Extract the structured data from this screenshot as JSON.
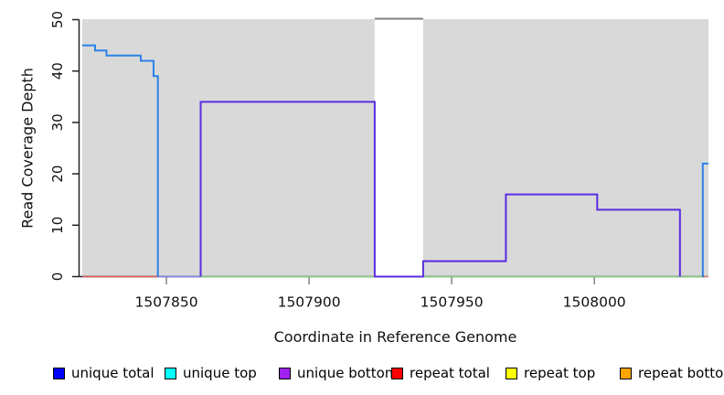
{
  "chart_data": {
    "type": "line",
    "title": "",
    "xlabel": "Coordinate in Reference Genome",
    "ylabel": "Read Coverage Depth",
    "xlim": [
      1507820.5,
      1508040
    ],
    "ylim": [
      0,
      50
    ],
    "x_ticks": [
      1507850,
      1507900,
      1507950,
      1508000
    ],
    "x_tick_labels": [
      "1507850",
      "1507900",
      "1507950",
      "1508000"
    ],
    "y_ticks": [
      0,
      10,
      20,
      30,
      40,
      50
    ],
    "y_tick_labels": [
      "0",
      "10",
      "20",
      "30",
      "40",
      "50"
    ],
    "plot_background": "#d9d9d9",
    "axis_color": "#222222",
    "x_tick_color": "#8a8a8a",
    "tick_label_color": "#111111",
    "grid": "off",
    "legend_position": "bottom",
    "gap_band": {
      "x0": 1507923,
      "x1": 1507940,
      "fill": "#ffffff",
      "top_line_value": 50,
      "top_line_color": "#7f7f7f"
    },
    "series": [
      {
        "name": "repeat-total-baseline-left",
        "color": "#dd5c5c",
        "width": 1.6,
        "points": [
          [
            1507820.5,
            0
          ],
          [
            1507847,
            0
          ]
        ]
      },
      {
        "name": "overlap-baseline-violet",
        "color": "#8585ea",
        "width": 1.6,
        "points": [
          [
            1507847,
            0
          ],
          [
            1507862,
            0
          ]
        ]
      },
      {
        "name": "overlap-baseline-green",
        "color": "#86cf86",
        "width": 1.6,
        "points": [
          [
            1507862,
            0
          ],
          [
            1508038,
            0
          ]
        ]
      },
      {
        "name": "repeat-total-baseline-right",
        "color": "#e58c8c",
        "width": 1.6,
        "points": [
          [
            1508038.5,
            0
          ],
          [
            1508040,
            0
          ]
        ]
      },
      {
        "name": "unique-bottom-coverage",
        "color": "#5a2cdf",
        "width": 2,
        "points": [
          [
            1507862,
            0
          ],
          [
            1507862,
            34
          ],
          [
            1507923,
            34
          ],
          [
            1507923,
            0
          ],
          [
            1507940,
            0
          ],
          [
            1507940,
            3
          ],
          [
            1507969,
            3
          ],
          [
            1507969,
            16
          ],
          [
            1508001,
            16
          ],
          [
            1508001,
            13
          ],
          [
            1508030,
            13
          ],
          [
            1508030,
            0
          ]
        ]
      },
      {
        "name": "unique-total-coverage-left",
        "color": "#2b82e8",
        "width": 2,
        "points": [
          [
            1507820.5,
            45
          ],
          [
            1507825,
            45
          ],
          [
            1507825,
            44
          ],
          [
            1507829,
            44
          ],
          [
            1507829,
            43
          ],
          [
            1507841,
            43
          ],
          [
            1507841,
            42
          ],
          [
            1507845.5,
            42
          ],
          [
            1507845.5,
            39
          ],
          [
            1507847,
            39
          ],
          [
            1507847,
            0
          ]
        ]
      },
      {
        "name": "unique-total-coverage-right",
        "color": "#2b82e8",
        "width": 2,
        "points": [
          [
            1508038,
            0
          ],
          [
            1508038,
            22
          ],
          [
            1508040,
            22
          ]
        ]
      }
    ],
    "legend": [
      {
        "label": "unique total",
        "color": "#0000ff"
      },
      {
        "label": "unique top",
        "color": "#00ffff"
      },
      {
        "label": "unique bottom",
        "color": "#a020f0"
      },
      {
        "label": "repeat total",
        "color": "#ff0000"
      },
      {
        "label": "repeat top",
        "color": "#ffff00"
      },
      {
        "label": "repeat bottom",
        "color": "#ffa500"
      }
    ]
  }
}
